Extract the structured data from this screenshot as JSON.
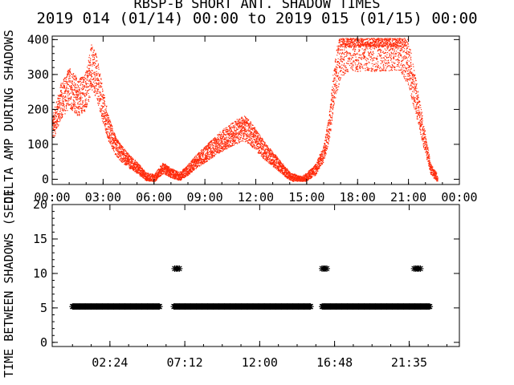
{
  "header": {
    "title": "RBSP-B SHORT ANT. SHADOW TIMES",
    "subtitle": "2019 014 (01/14) 00:00 to 2019 015 (01/15) 00:00"
  },
  "colors": {
    "points": "#ff2a0a",
    "axes": "#000000",
    "stars": "#000000"
  },
  "chart_data": [
    {
      "type": "scatter",
      "ylabel": "DELTA AMP DURING SHADOWS",
      "x_unit": "hours",
      "xlim": [
        0,
        24
      ],
      "ylim": [
        -15,
        410
      ],
      "xticks": [
        "00:00",
        "03:00",
        "06:00",
        "09:00",
        "12:00",
        "15:00",
        "18:00",
        "21:00",
        "00:00"
      ],
      "yticks": [
        "0",
        "100",
        "200",
        "300",
        "400"
      ],
      "envelope": [
        {
          "x": 0.0,
          "y": 150
        },
        {
          "x": 0.5,
          "y": 230
        },
        {
          "x": 1.0,
          "y": 270
        },
        {
          "x": 1.5,
          "y": 240
        },
        {
          "x": 2.0,
          "y": 260
        },
        {
          "x": 2.3,
          "y": 330
        },
        {
          "x": 2.6,
          "y": 300
        },
        {
          "x": 3.0,
          "y": 210
        },
        {
          "x": 3.3,
          "y": 150
        },
        {
          "x": 3.7,
          "y": 100
        },
        {
          "x": 4.0,
          "y": 80
        },
        {
          "x": 4.5,
          "y": 55
        },
        {
          "x": 5.0,
          "y": 35
        },
        {
          "x": 5.5,
          "y": 10
        },
        {
          "x": 6.0,
          "y": 5
        },
        {
          "x": 6.5,
          "y": 35
        },
        {
          "x": 7.0,
          "y": 20
        },
        {
          "x": 7.5,
          "y": 10
        },
        {
          "x": 8.0,
          "y": 30
        },
        {
          "x": 8.5,
          "y": 55
        },
        {
          "x": 9.0,
          "y": 75
        },
        {
          "x": 9.5,
          "y": 95
        },
        {
          "x": 10.0,
          "y": 115
        },
        {
          "x": 10.5,
          "y": 130
        },
        {
          "x": 11.0,
          "y": 145
        },
        {
          "x": 11.3,
          "y": 150
        },
        {
          "x": 11.7,
          "y": 135
        },
        {
          "x": 12.0,
          "y": 115
        },
        {
          "x": 12.5,
          "y": 85
        },
        {
          "x": 13.0,
          "y": 60
        },
        {
          "x": 13.5,
          "y": 35
        },
        {
          "x": 14.0,
          "y": 10
        },
        {
          "x": 14.7,
          "y": 0
        },
        {
          "x": 15.0,
          "y": 10
        },
        {
          "x": 15.5,
          "y": 30
        },
        {
          "x": 16.0,
          "y": 80
        },
        {
          "x": 16.3,
          "y": 150
        },
        {
          "x": 16.6,
          "y": 280
        },
        {
          "x": 17.0,
          "y": 380
        },
        {
          "x": 17.5,
          "y": 400
        },
        {
          "x": 18.0,
          "y": 400
        },
        {
          "x": 18.5,
          "y": 400
        },
        {
          "x": 19.0,
          "y": 400
        },
        {
          "x": 19.5,
          "y": 400
        },
        {
          "x": 20.0,
          "y": 400
        },
        {
          "x": 20.5,
          "y": 400
        },
        {
          "x": 21.0,
          "y": 340
        },
        {
          "x": 21.5,
          "y": 220
        },
        {
          "x": 22.0,
          "y": 100
        },
        {
          "x": 22.3,
          "y": 30
        },
        {
          "x": 22.7,
          "y": 5
        }
      ]
    },
    {
      "type": "scatter",
      "ylabel": "TIME BETWEEN SHADOWS (SEC)",
      "x_unit": "hours",
      "xlim": [
        -1.3,
        24.8
      ],
      "ylim": [
        -0.6,
        20
      ],
      "xticks": [
        "02:24",
        "07:12",
        "12:00",
        "16:48",
        "21:35"
      ],
      "xtick_hours": [
        2.4,
        7.2,
        12.0,
        16.8,
        21.58
      ],
      "yticks": [
        "0",
        "5",
        "10",
        "15",
        "20"
      ],
      "y5_segments": [
        [
          0.0,
          5.6
        ],
        [
          6.5,
          15.3
        ],
        [
          16.0,
          22.9
        ]
      ],
      "y10_points": [
        6.55,
        6.65,
        6.75,
        6.85,
        16.0,
        16.1,
        16.2,
        16.3,
        21.9,
        22.0,
        22.1,
        22.2,
        22.3
      ],
      "y5_extra_points": [
        15.25
      ]
    }
  ]
}
